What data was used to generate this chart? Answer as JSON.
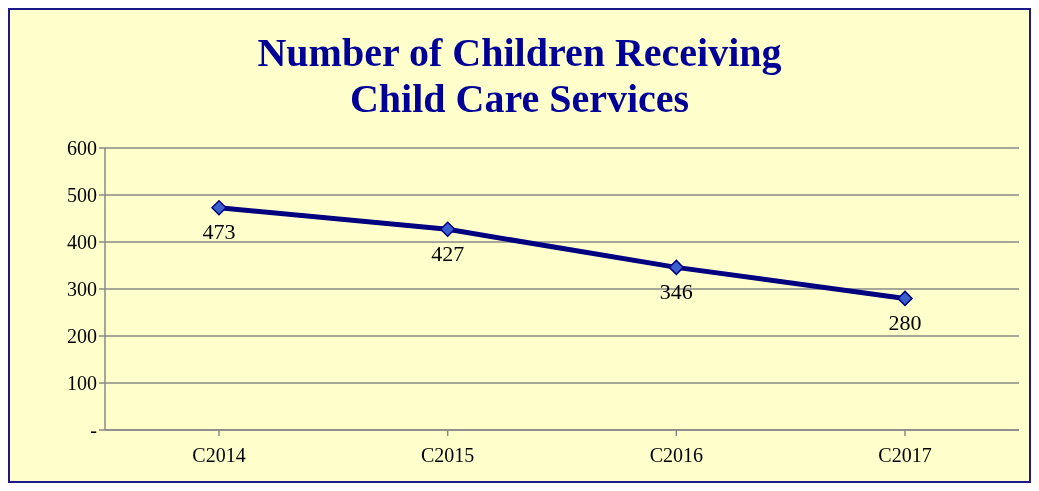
{
  "chart_data": {
    "type": "line",
    "title": "Number of Children Receiving\nChild Care Services",
    "categories": [
      "C2014",
      "C2015",
      "C2016",
      "C2017"
    ],
    "series": [
      {
        "color": "#000080",
        "values": [
          473,
          427,
          346,
          280
        ]
      }
    ],
    "ylim": [
      0,
      600
    ],
    "yticks": [
      {
        "value": 0,
        "label": "-"
      },
      100,
      200,
      300,
      400,
      500,
      600
    ],
    "grid": "y",
    "legend": false,
    "marker": "diamond",
    "line_style": "solid",
    "data_labels": true
  }
}
